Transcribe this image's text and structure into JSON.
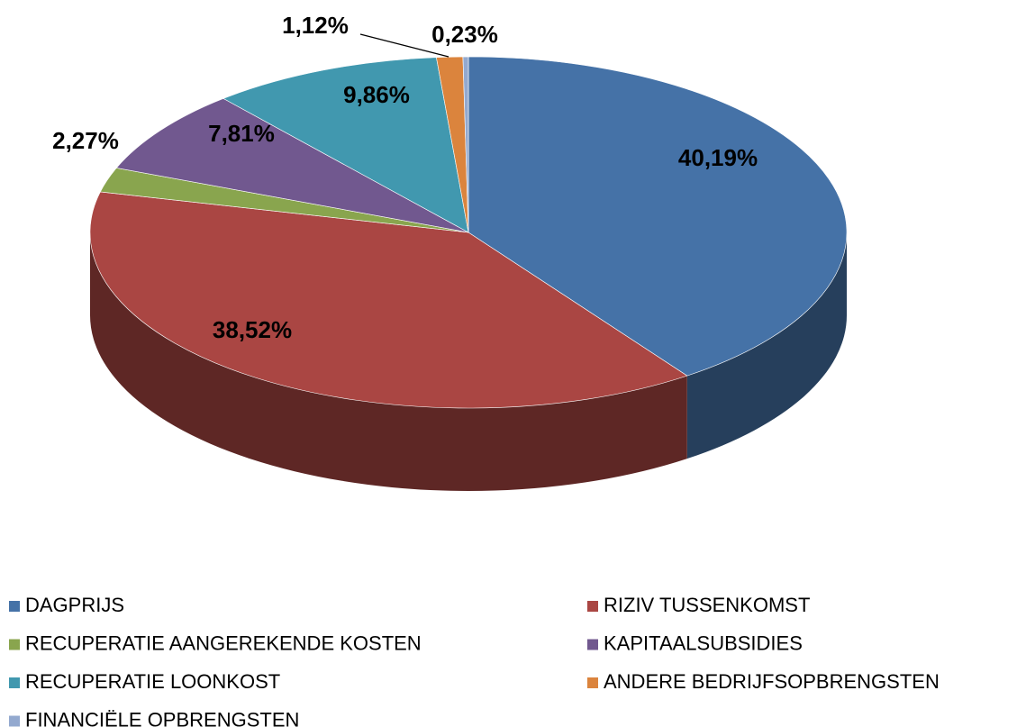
{
  "chart_data": {
    "type": "pie",
    "categories": [
      "DAGPRIJS",
      "RIZIV TUSSENKOMST",
      "RECUPERATIE AANGEREKENDE KOSTEN",
      "KAPITAALSUBSIDIES",
      "RECUPERATIE LOONKOST",
      "ANDERE BEDRIJFSOPBRENGSTEN",
      "FINANCIËLE OPBRENGSTEN"
    ],
    "values": [
      40.19,
      38.52,
      2.27,
      7.81,
      9.86,
      1.12,
      0.23
    ],
    "value_labels": [
      "40,19%",
      "38,52%",
      "2,27%",
      "7,81%",
      "9,86%",
      "1,12%",
      "0,23%"
    ],
    "colors": [
      "#4572a7",
      "#aa4643",
      "#89a54e",
      "#71588f",
      "#4198af",
      "#db843d",
      "#93a9cf"
    ],
    "legend": "bottom"
  }
}
